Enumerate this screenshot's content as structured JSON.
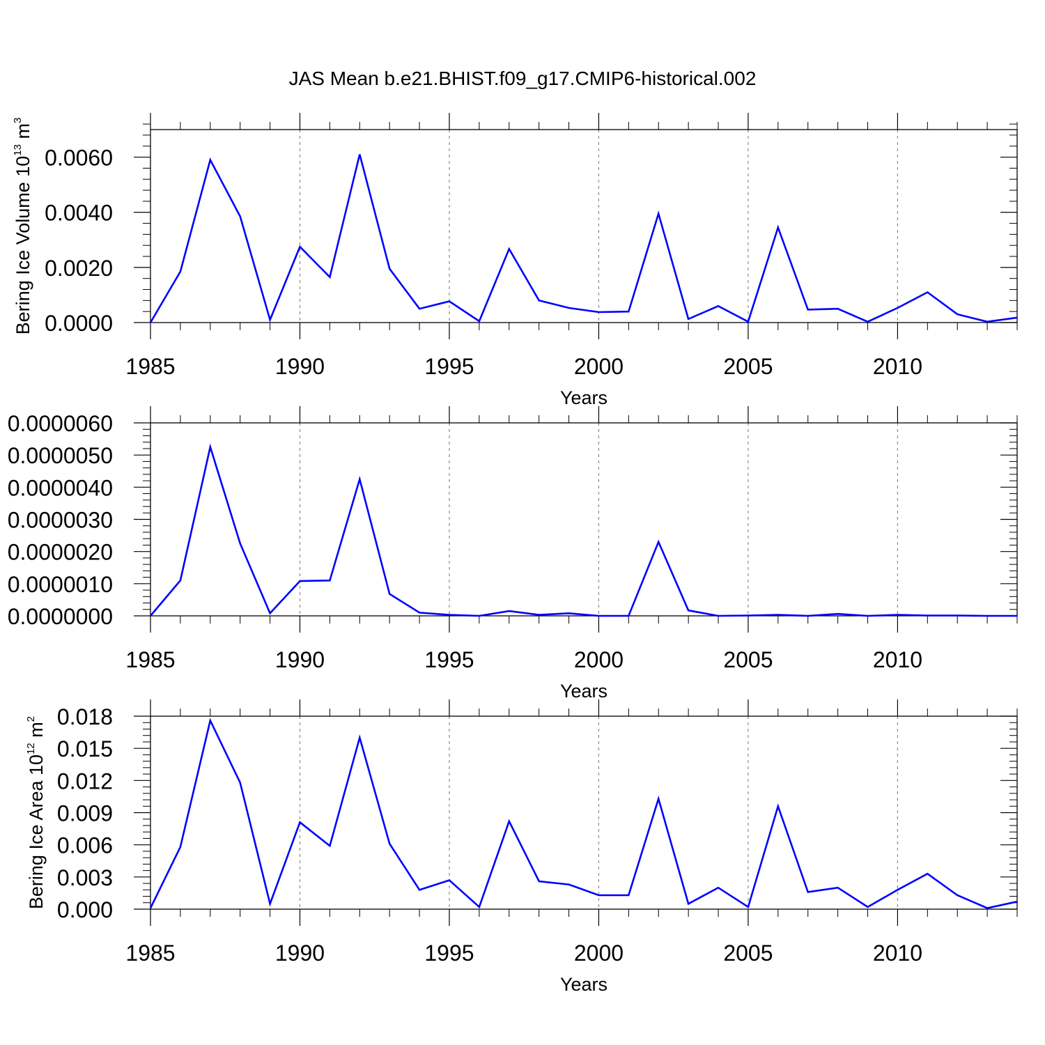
{
  "title": "JAS Mean b.e21.BHIST.f09_g17.CMIP6-historical.002",
  "line_color": "#0000ff",
  "chart_data": [
    {
      "type": "line",
      "xlabel": "Years",
      "ylabel": "Bering Ice Volume 10",
      "ylabel_exp": "13",
      "ylabel_unit": " m",
      "ylabel_unit_exp": "3",
      "xlim": [
        1985,
        2014
      ],
      "ylim": [
        0,
        0.007
      ],
      "xticks": [
        1985,
        1990,
        1995,
        2000,
        2005,
        2010
      ],
      "yticks": [
        0.0,
        0.002,
        0.004,
        0.006
      ],
      "ytick_labels": [
        "0.0000",
        "0.0020",
        "0.0040",
        "0.0060"
      ],
      "grid": "vertical dashed at major x ticks",
      "x": [
        1985,
        1986,
        1987,
        1988,
        1989,
        1990,
        1991,
        1992,
        1993,
        1994,
        1995,
        1996,
        1997,
        1998,
        1999,
        2000,
        2001,
        2002,
        2003,
        2004,
        2005,
        2006,
        2007,
        2008,
        2009,
        2010,
        2011,
        2012,
        2013,
        2014
      ],
      "y": [
        0.0,
        0.00185,
        0.0059,
        0.00385,
        0.0001,
        0.00275,
        0.00165,
        0.0061,
        0.00195,
        0.0005,
        0.00077,
        5e-05,
        0.00267,
        0.0008,
        0.00053,
        0.00038,
        0.0004,
        0.00395,
        0.00013,
        0.0006,
        3e-05,
        0.00345,
        0.00047,
        0.0005,
        3e-05,
        0.00053,
        0.0011,
        0.0003,
        3e-05,
        0.00018
      ]
    },
    {
      "type": "line",
      "xlabel": "Years",
      "ylabel": "",
      "xlim": [
        1985,
        2014
      ],
      "ylim": [
        0,
        6e-06
      ],
      "xticks": [
        1985,
        1990,
        1995,
        2000,
        2005,
        2010
      ],
      "yticks": [
        0.0,
        1e-06,
        2e-06,
        3e-06,
        4e-06,
        5e-06,
        6e-06
      ],
      "ytick_labels": [
        "0.0000000",
        "0.0000010",
        "0.0000020",
        "0.0000030",
        "0.0000040",
        "0.0000050",
        "0.0000060"
      ],
      "grid": "vertical dashed at major x ticks",
      "x": [
        1985,
        1986,
        1987,
        1988,
        1989,
        1990,
        1991,
        1992,
        1993,
        1994,
        1995,
        1996,
        1997,
        1998,
        1999,
        2000,
        2001,
        2002,
        2003,
        2004,
        2005,
        2006,
        2007,
        2008,
        2009,
        2010,
        2011,
        2012,
        2013,
        2014
      ],
      "y": [
        0.0,
        1.1e-06,
        5.25e-06,
        2.25e-06,
        8e-08,
        1.08e-06,
        1.1e-06,
        4.25e-06,
        6.8e-07,
        1e-07,
        3e-08,
        0.0,
        1.5e-07,
        3e-08,
        8e-08,
        0.0,
        0.0,
        2.3e-06,
        1.7e-07,
        0.0,
        1e-08,
        3e-08,
        0.0,
        6e-08,
        0.0,
        3e-08,
        1e-08,
        1e-08,
        0.0,
        0.0
      ]
    },
    {
      "type": "line",
      "xlabel": "Years",
      "ylabel": "Bering Ice Area 10",
      "ylabel_exp": "12",
      "ylabel_unit": " m",
      "ylabel_unit_exp": "2",
      "xlim": [
        1985,
        2014
      ],
      "ylim": [
        0,
        0.018
      ],
      "xticks": [
        1985,
        1990,
        1995,
        2000,
        2005,
        2010
      ],
      "yticks": [
        0.0,
        0.003,
        0.006,
        0.009,
        0.012,
        0.015,
        0.018
      ],
      "ytick_labels": [
        "0.000",
        "0.003",
        "0.006",
        "0.009",
        "0.012",
        "0.015",
        "0.018"
      ],
      "grid": "vertical dashed at major x ticks",
      "x": [
        1985,
        1986,
        1987,
        1988,
        1989,
        1990,
        1991,
        1992,
        1993,
        1994,
        1995,
        1996,
        1997,
        1998,
        1999,
        2000,
        2001,
        2002,
        2003,
        2004,
        2005,
        2006,
        2007,
        2008,
        2009,
        2010,
        2011,
        2012,
        2013,
        2014
      ],
      "y": [
        0.0001,
        0.0058,
        0.0176,
        0.0118,
        0.0005,
        0.0081,
        0.0059,
        0.016,
        0.0061,
        0.0018,
        0.0027,
        0.0002,
        0.0082,
        0.0026,
        0.0023,
        0.0013,
        0.0013,
        0.0103,
        0.0005,
        0.002,
        0.0002,
        0.0096,
        0.0016,
        0.002,
        0.0002,
        0.0018,
        0.0033,
        0.0013,
        0.0001,
        0.0007
      ]
    }
  ]
}
